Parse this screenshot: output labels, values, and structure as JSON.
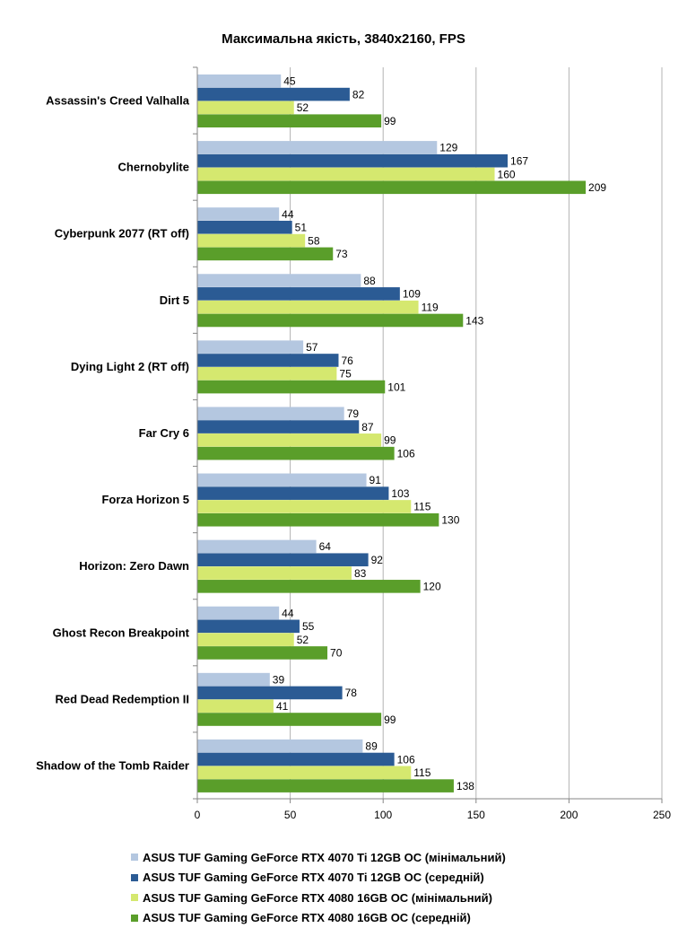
{
  "chart_data": {
    "type": "bar",
    "orientation": "horizontal",
    "title": "Максимальна якість, 3840x2160, FPS",
    "xlabel": "",
    "ylabel": "",
    "xlim": [
      0,
      250
    ],
    "x_ticks": [
      "0",
      "50",
      "100",
      "150",
      "200",
      "250"
    ],
    "grid": "vertical",
    "legend_position": "bottom",
    "categories": [
      "Assassin's Creed Valhalla",
      "Chernobylite",
      "Cyberpunk 2077 (RT off)",
      "Dirt 5",
      "Dying Light 2 (RT off)",
      "Far Cry 6",
      "Forza Horizon 5",
      "Horizon: Zero Dawn",
      "Ghost Recon Breakpoint",
      "Red Dead Redemption II",
      "Shadow of the Tomb Raider"
    ],
    "series": [
      {
        "name": "ASUS TUF Gaming GeForce RTX 4070 Ti 12GB OC (мінімальний)",
        "color": "#b4c7e0",
        "values": [
          45,
          129,
          44,
          88,
          57,
          79,
          91,
          64,
          44,
          39,
          89
        ]
      },
      {
        "name": "ASUS TUF Gaming GeForce RTX 4070 Ti 12GB OC (середній)",
        "color": "#2b5b94",
        "values": [
          82,
          167,
          51,
          109,
          76,
          87,
          103,
          92,
          55,
          78,
          106
        ]
      },
      {
        "name": "ASUS TUF Gaming GeForce RTX 4080 16GB OC (мінімальний)",
        "color": "#d5e86f",
        "values": [
          52,
          160,
          58,
          119,
          75,
          99,
          115,
          83,
          52,
          41,
          115
        ]
      },
      {
        "name": "ASUS TUF Gaming GeForce RTX 4080 16GB OC (середній)",
        "color": "#5a9e2a",
        "values": [
          99,
          209,
          73,
          143,
          101,
          106,
          130,
          120,
          70,
          99,
          138
        ]
      }
    ]
  }
}
